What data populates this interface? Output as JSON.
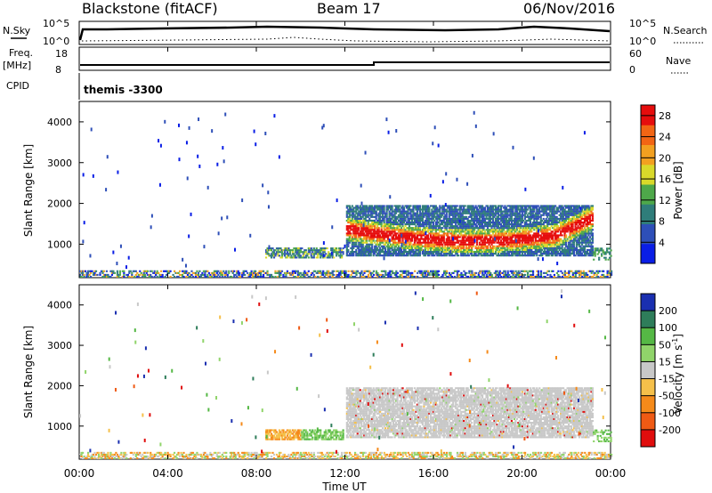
{
  "header": {
    "station": "Blackstone (fitACF)",
    "beam": "Beam 17",
    "date": "06/Nov/2016"
  },
  "side_labels": {
    "nsky": "N.Sky",
    "nsearch": "N.Search",
    "freq": "Freq.",
    "freq_unit": "[MHz]",
    "cpid": "CPID",
    "nave": "Nave",
    "noise_top": "10^5",
    "noise_bottom": "10^0",
    "freq_top": "18",
    "freq_bottom": "8",
    "nave_top": "60",
    "nave_bottom": "0"
  },
  "cpid_text": "themis -3300",
  "chart_data": [
    {
      "type": "heatmap",
      "name": "power",
      "ylabel": "Slant Range [km]",
      "xlabel": "Time UT",
      "xlim": [
        "00:00",
        "24:00"
      ],
      "ylim": [
        180,
        4500
      ],
      "x_ticks": [
        "00:00",
        "04:00",
        "08:00",
        "12:00",
        "16:00",
        "20:00",
        "00:00"
      ],
      "y_ticks": [
        1000,
        2000,
        3000,
        4000
      ],
      "colorbar": {
        "label": "Power [dB]",
        "ticks": [
          4,
          8,
          12,
          16,
          20,
          24,
          28
        ],
        "range": [
          0,
          30
        ],
        "colors": [
          "#0a1ee6",
          "#2e4fb8",
          "#2f7d7a",
          "#4ea84a",
          "#d9d92a",
          "#f2a020",
          "#f26514",
          "#e60d0d"
        ]
      },
      "features": [
        {
          "description_from": "main echo band",
          "x_start_hour": 12.0,
          "x_end_hour": 23.2,
          "range_km": [
            900,
            1800
          ]
        },
        {
          "description_from": "early band",
          "x_start_hour": 8.4,
          "x_end_hour": 11.9,
          "range_km": [
            650,
            900
          ]
        },
        {
          "description_from": "ground scatter",
          "x_start_hour": 0,
          "x_end_hour": 24,
          "range_km": [
            180,
            350
          ]
        }
      ]
    },
    {
      "type": "heatmap",
      "name": "velocity",
      "ylabel": "Slant Range [km]",
      "xlabel": "Time UT",
      "xlim": [
        "00:00",
        "24:00"
      ],
      "ylim": [
        180,
        4500
      ],
      "x_ticks": [
        "00:00",
        "04:00",
        "08:00",
        "12:00",
        "16:00",
        "20:00",
        "00:00"
      ],
      "y_ticks": [
        1000,
        2000,
        3000,
        4000
      ],
      "colorbar": {
        "label": "Velocity [m s^-1]",
        "ticks": [
          200,
          100,
          50,
          15,
          -15,
          -50,
          -100,
          -200
        ],
        "colors": [
          "#1a2fb0",
          "#2e7d5a",
          "#55b845",
          "#90d46a",
          "#c8c8c8",
          "#f5c04a",
          "#f58a1a",
          "#ef5a14",
          "#e00d0d"
        ]
      }
    }
  ],
  "x_axis_label": "Time UT",
  "x_tick_labels": [
    "00:00",
    "04:00",
    "08:00",
    "12:00",
    "16:00",
    "20:00",
    "00:00"
  ],
  "y_axis_label": "Slant Range [km]",
  "y_tick_labels": [
    "1000",
    "2000",
    "3000",
    "4000"
  ],
  "power_cbar_label": "Power [dB]",
  "power_cbar_ticks": [
    "4",
    "8",
    "12",
    "16",
    "20",
    "24",
    "28"
  ],
  "vel_cbar_label": "Velocity [m s",
  "vel_cbar_unit_sup": "-1",
  "vel_cbar_ticks": [
    "200",
    "100",
    "50",
    "15",
    "-15",
    "-50",
    "-100",
    "-200"
  ]
}
